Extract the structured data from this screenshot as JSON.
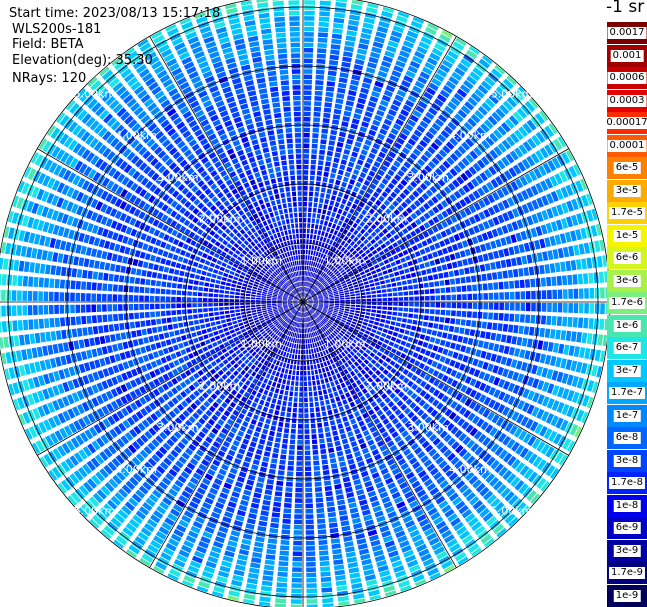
{
  "header": {
    "start_time": "Start time: 2023/08/13 15:17:18",
    "instrument": "WLS200s-181",
    "field": "Field: BETA",
    "elevation": "Elevation(deg): 35.30",
    "nrays": "NRays: 120"
  },
  "colorbar": {
    "title": "-1 sr",
    "labels": [
      "0.0017",
      "0.001",
      "0.0006",
      "0.0003",
      "0.00017",
      "0.0001",
      "6e-5",
      "3e-5",
      "1.7e-5",
      "1e-5",
      "6e-6",
      "3e-6",
      "1.7e-6",
      "1e-6",
      "6e-7",
      "3e-7",
      "1.7e-7",
      "1e-7",
      "6e-8",
      "3e-8",
      "1.7e-8",
      "1e-8",
      "6e-9",
      "3e-9",
      "1.7e-9",
      "1e-9"
    ],
    "colors": [
      "#7a0000",
      "#a00000",
      "#c80000",
      "#e60000",
      "#ff2a00",
      "#ff5a00",
      "#ff7f00",
      "#ffaa00",
      "#ffcf00",
      "#f5f500",
      "#d6f51e",
      "#a8f04a",
      "#7cf07c",
      "#4ae6b0",
      "#1ee6e6",
      "#00c8ff",
      "#00a8ff",
      "#0088ff",
      "#0066ff",
      "#0044ff",
      "#0022ff",
      "#0000ee",
      "#0000c8",
      "#0000a0",
      "#000080",
      "#00005a"
    ]
  },
  "chart_data": {
    "type": "heatmap",
    "projection": "polar (PPI scan)",
    "field": "BETA",
    "elevation_deg": 35.3,
    "n_rays": 120,
    "range_rings_km": [
      1.0,
      2.0,
      3.0,
      4.0,
      5.0
    ],
    "ring_labels": [
      "1.00km",
      "2.00km",
      "3.00km",
      "4.00km",
      "5.00km"
    ],
    "max_range_km": 5.2,
    "range_profile": [
      {
        "r_km": 0.0,
        "level": 0.88
      },
      {
        "r_km": 1.0,
        "level": 0.86
      },
      {
        "r_km": 1.5,
        "level": 0.8
      },
      {
        "r_km": 2.0,
        "level": 0.79
      },
      {
        "r_km": 2.5,
        "level": 0.77
      },
      {
        "r_km": 3.0,
        "level": 0.76
      },
      {
        "r_km": 3.5,
        "level": 0.75
      },
      {
        "r_km": 4.0,
        "level": 0.72
      },
      {
        "r_km": 4.5,
        "level": 0.67
      },
      {
        "r_km": 5.0,
        "level": 0.6
      },
      {
        "r_km": 5.2,
        "level": 0.54
      }
    ],
    "grid": true
  }
}
